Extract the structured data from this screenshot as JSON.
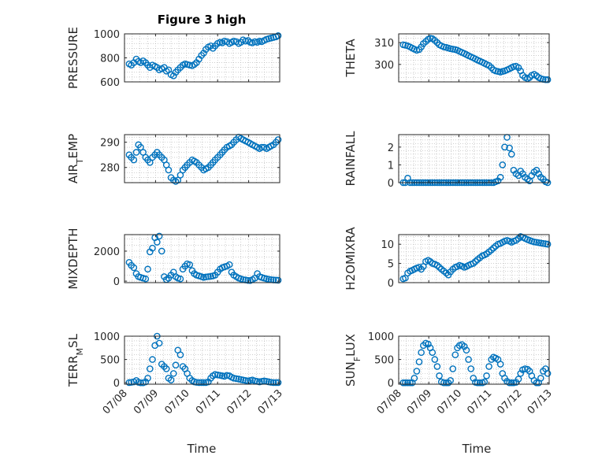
{
  "figure": {
    "title": "Figure 3 high",
    "xlabel": "Time"
  },
  "colors": {
    "marker": "#0072BD",
    "axis": "#262626",
    "grid": "#b0b0b0"
  },
  "chart_data": [
    {
      "type": "scatter",
      "id": "pressure",
      "ylabel": "PRESSURE",
      "ylim": [
        600,
        1000
      ],
      "yticks": [
        600,
        800,
        1000
      ],
      "xlim": [
        0,
        5
      ],
      "xticks": [
        0,
        1,
        2,
        3,
        4,
        5
      ],
      "xticklabels": [
        "07/08",
        "07/09",
        "07/10",
        "07/11",
        "07/12",
        "07/13"
      ],
      "title": "Figure 3 high",
      "grid": true,
      "x": [
        0.15,
        0.22,
        0.3,
        0.38,
        0.45,
        0.52,
        0.6,
        0.68,
        0.75,
        0.82,
        0.9,
        0.98,
        1.05,
        1.12,
        1.2,
        1.28,
        1.35,
        1.42,
        1.5,
        1.58,
        1.65,
        1.72,
        1.8,
        1.88,
        1.95,
        2.02,
        2.1,
        2.18,
        2.25,
        2.32,
        2.4,
        2.48,
        2.55,
        2.62,
        2.7,
        2.78,
        2.85,
        2.92,
        3.0,
        3.08,
        3.15,
        3.22,
        3.3,
        3.38,
        3.45,
        3.52,
        3.6,
        3.68,
        3.75,
        3.82,
        3.9,
        3.98,
        4.05,
        4.12,
        4.2,
        4.28,
        4.35,
        4.42,
        4.5,
        4.58,
        4.65,
        4.72,
        4.8,
        4.88,
        4.95
      ],
      "y": [
        750,
        740,
        760,
        790,
        770,
        760,
        775,
        760,
        740,
        720,
        740,
        730,
        720,
        700,
        710,
        720,
        690,
        700,
        660,
        650,
        680,
        700,
        720,
        740,
        750,
        745,
        740,
        735,
        745,
        760,
        790,
        820,
        840,
        870,
        890,
        900,
        880,
        900,
        920,
        930,
        925,
        940,
        935,
        920,
        930,
        940,
        935,
        920,
        930,
        950,
        940,
        945,
        930,
        925,
        935,
        930,
        940,
        935,
        945,
        955,
        960,
        965,
        970,
        975,
        985
      ]
    },
    {
      "type": "scatter",
      "id": "theta",
      "ylabel": "THETA",
      "ylim": [
        292,
        314
      ],
      "yticks": [
        300,
        310
      ],
      "xlim": [
        0,
        5
      ],
      "xticks": [
        0,
        1,
        2,
        3,
        4,
        5
      ],
      "xticklabels": [
        "07/08",
        "07/09",
        "07/10",
        "07/11",
        "07/12",
        "07/13"
      ],
      "title": "",
      "grid": true,
      "x": [
        0.15,
        0.22,
        0.3,
        0.38,
        0.45,
        0.52,
        0.6,
        0.68,
        0.75,
        0.82,
        0.9,
        0.98,
        1.05,
        1.12,
        1.2,
        1.28,
        1.35,
        1.42,
        1.5,
        1.58,
        1.65,
        1.72,
        1.8,
        1.88,
        1.95,
        2.02,
        2.1,
        2.18,
        2.25,
        2.32,
        2.4,
        2.48,
        2.55,
        2.62,
        2.7,
        2.78,
        2.85,
        2.92,
        3.0,
        3.08,
        3.15,
        3.22,
        3.3,
        3.38,
        3.45,
        3.52,
        3.6,
        3.68,
        3.75,
        3.82,
        3.9,
        3.98,
        4.05,
        4.12,
        4.2,
        4.28,
        4.35,
        4.42,
        4.5,
        4.58,
        4.65,
        4.72,
        4.8,
        4.88,
        4.95
      ],
      "y": [
        309,
        308.8,
        308.5,
        308,
        307.5,
        307,
        306.5,
        306.8,
        308,
        309.5,
        310.5,
        311.5,
        312,
        311.8,
        311,
        310,
        309,
        308.5,
        308,
        307.8,
        307.5,
        307.2,
        307,
        306.8,
        306.5,
        306,
        305.5,
        305,
        304.5,
        304,
        303.5,
        303,
        302.5,
        302,
        301.5,
        301,
        300.5,
        300,
        299.5,
        298.5,
        297.5,
        297,
        296.8,
        296.5,
        296.8,
        297,
        297.5,
        298,
        298.5,
        299,
        299.2,
        298.5,
        297,
        295,
        294,
        293.5,
        294,
        295,
        295.5,
        294.8,
        294,
        293.5,
        293.2,
        293,
        293
      ]
    },
    {
      "type": "scatter",
      "id": "air_temp",
      "ylabel": "AIR_TEMP",
      "ylim": [
        274,
        293
      ],
      "yticks": [
        280,
        290
      ],
      "xlim": [
        0,
        5
      ],
      "xticks": [
        0,
        1,
        2,
        3,
        4,
        5
      ],
      "xticklabels": [
        "07/08",
        "07/09",
        "07/10",
        "07/11",
        "07/12",
        "07/13"
      ],
      "title": "",
      "grid": true,
      "x": [
        0.15,
        0.22,
        0.3,
        0.38,
        0.45,
        0.52,
        0.6,
        0.68,
        0.75,
        0.82,
        0.9,
        0.98,
        1.05,
        1.12,
        1.2,
        1.28,
        1.35,
        1.42,
        1.5,
        1.58,
        1.65,
        1.72,
        1.8,
        1.88,
        1.95,
        2.02,
        2.1,
        2.18,
        2.25,
        2.32,
        2.4,
        2.48,
        2.55,
        2.62,
        2.7,
        2.78,
        2.85,
        2.92,
        3.0,
        3.08,
        3.15,
        3.22,
        3.3,
        3.38,
        3.45,
        3.52,
        3.6,
        3.68,
        3.75,
        3.82,
        3.9,
        3.98,
        4.05,
        4.12,
        4.2,
        4.28,
        4.35,
        4.42,
        4.5,
        4.58,
        4.65,
        4.72,
        4.8,
        4.88,
        4.95
      ],
      "y": [
        285,
        284,
        283,
        286,
        289,
        288,
        286,
        284,
        283,
        282,
        284,
        285,
        286,
        285,
        284,
        283,
        281,
        279,
        276,
        275,
        274.5,
        275,
        277,
        279,
        280,
        281,
        282,
        283,
        282.5,
        282,
        281,
        280,
        279,
        279.5,
        280,
        281,
        282,
        283,
        284,
        285,
        286,
        287,
        288,
        288.5,
        289,
        290,
        291,
        292,
        291.5,
        291,
        290.5,
        290,
        289.5,
        289,
        288.5,
        288,
        287.5,
        288,
        288,
        287.5,
        288,
        288.5,
        289,
        290,
        291
      ]
    },
    {
      "type": "scatter",
      "id": "rainfall",
      "ylabel": "RAINFALL",
      "ylim": [
        0,
        2.7
      ],
      "yticks": [
        0,
        1,
        2
      ],
      "xlim": [
        0,
        5
      ],
      "xticks": [
        0,
        1,
        2,
        3,
        4,
        5
      ],
      "xticklabels": [
        "07/08",
        "07/09",
        "07/10",
        "07/11",
        "07/12",
        "07/13"
      ],
      "title": "",
      "grid": true,
      "x": [
        0.15,
        0.22,
        0.3,
        0.38,
        0.45,
        0.52,
        0.6,
        0.68,
        0.75,
        0.82,
        0.9,
        0.98,
        1.05,
        1.12,
        1.2,
        1.28,
        1.35,
        1.42,
        1.5,
        1.58,
        1.65,
        1.72,
        1.8,
        1.88,
        1.95,
        2.02,
        2.1,
        2.18,
        2.25,
        2.32,
        2.4,
        2.48,
        2.55,
        2.62,
        2.7,
        2.78,
        2.85,
        2.92,
        3.0,
        3.08,
        3.15,
        3.22,
        3.3,
        3.38,
        3.45,
        3.52,
        3.6,
        3.68,
        3.75,
        3.82,
        3.9,
        3.98,
        4.05,
        4.12,
        4.2,
        4.28,
        4.35,
        4.42,
        4.5,
        4.58,
        4.65,
        4.72,
        4.8,
        4.88,
        4.95
      ],
      "y": [
        0,
        0,
        0.25,
        0,
        0,
        0,
        0,
        0,
        0,
        0,
        0,
        0,
        0,
        0,
        0,
        0,
        0,
        0,
        0,
        0,
        0,
        0,
        0,
        0,
        0,
        0,
        0,
        0,
        0,
        0,
        0,
        0,
        0,
        0,
        0,
        0,
        0,
        0,
        0,
        0,
        0,
        0.05,
        0.1,
        0.3,
        1.0,
        2.0,
        2.55,
        1.95,
        1.6,
        0.7,
        0.5,
        0.4,
        0.65,
        0.5,
        0.3,
        0.2,
        0.1,
        0.4,
        0.6,
        0.7,
        0.5,
        0.3,
        0.2,
        0.05,
        0
      ]
    },
    {
      "type": "scatter",
      "id": "mixdepth",
      "ylabel": "MIXDEPTH",
      "ylim": [
        -100,
        3100
      ],
      "yticks": [
        0,
        2000
      ],
      "xlim": [
        0,
        5
      ],
      "xticks": [
        0,
        1,
        2,
        3,
        4,
        5
      ],
      "xticklabels": [
        "07/08",
        "07/09",
        "07/10",
        "07/11",
        "07/12",
        "07/13"
      ],
      "title": "",
      "grid": true,
      "x": [
        0.15,
        0.22,
        0.3,
        0.38,
        0.45,
        0.52,
        0.6,
        0.68,
        0.75,
        0.82,
        0.9,
        0.98,
        1.05,
        1.12,
        1.2,
        1.28,
        1.35,
        1.42,
        1.5,
        1.58,
        1.65,
        1.72,
        1.8,
        1.88,
        1.95,
        2.02,
        2.1,
        2.18,
        2.25,
        2.32,
        2.4,
        2.48,
        2.55,
        2.62,
        2.7,
        2.78,
        2.85,
        2.92,
        3.0,
        3.08,
        3.15,
        3.22,
        3.3,
        3.38,
        3.45,
        3.52,
        3.6,
        3.68,
        3.75,
        3.82,
        3.9,
        3.98,
        4.05,
        4.12,
        4.2,
        4.28,
        4.35,
        4.42,
        4.5,
        4.58,
        4.65,
        4.72,
        4.8,
        4.88,
        4.95
      ],
      "y": [
        1250,
        1050,
        900,
        500,
        300,
        250,
        200,
        150,
        800,
        1950,
        2200,
        2900,
        2600,
        3000,
        2000,
        300,
        100,
        200,
        400,
        600,
        300,
        200,
        150,
        800,
        1000,
        1150,
        1100,
        700,
        500,
        400,
        350,
        300,
        250,
        280,
        300,
        320,
        350,
        400,
        600,
        800,
        900,
        950,
        1000,
        1100,
        600,
        400,
        300,
        200,
        150,
        100,
        80,
        50,
        40,
        100,
        200,
        500,
        300,
        250,
        200,
        150,
        120,
        100,
        80,
        70,
        60
      ]
    },
    {
      "type": "scatter",
      "id": "h2omixra",
      "ylabel": "H2OMIXRA",
      "ylim": [
        0,
        12.5
      ],
      "yticks": [
        0,
        5,
        10
      ],
      "xlim": [
        0,
        5
      ],
      "xticks": [
        0,
        1,
        2,
        3,
        4,
        5
      ],
      "xticklabels": [
        "07/08",
        "07/09",
        "07/10",
        "07/11",
        "07/12",
        "07/13"
      ],
      "title": "",
      "grid": true,
      "x": [
        0.15,
        0.22,
        0.3,
        0.38,
        0.45,
        0.52,
        0.6,
        0.68,
        0.75,
        0.82,
        0.9,
        0.98,
        1.05,
        1.12,
        1.2,
        1.28,
        1.35,
        1.42,
        1.5,
        1.58,
        1.65,
        1.72,
        1.8,
        1.88,
        1.95,
        2.02,
        2.1,
        2.18,
        2.25,
        2.32,
        2.4,
        2.48,
        2.55,
        2.62,
        2.7,
        2.78,
        2.85,
        2.92,
        3.0,
        3.08,
        3.15,
        3.22,
        3.3,
        3.38,
        3.45,
        3.52,
        3.6,
        3.68,
        3.75,
        3.82,
        3.9,
        3.98,
        4.05,
        4.12,
        4.2,
        4.28,
        4.35,
        4.42,
        4.5,
        4.58,
        4.65,
        4.72,
        4.8,
        4.88,
        4.95
      ],
      "y": [
        1.0,
        1.2,
        2.5,
        3.0,
        3.2,
        3.5,
        3.8,
        4.0,
        3.5,
        4.2,
        5.5,
        5.8,
        5.5,
        5.0,
        4.8,
        4.5,
        4.0,
        3.5,
        3.0,
        2.5,
        2.0,
        2.8,
        3.5,
        4.0,
        4.2,
        4.5,
        4.3,
        4.0,
        4.2,
        4.5,
        4.8,
        5.0,
        5.5,
        6.0,
        6.5,
        7.0,
        7.2,
        7.5,
        8.0,
        8.5,
        9.0,
        9.5,
        10.0,
        10.2,
        10.5,
        10.8,
        11.0,
        10.8,
        10.5,
        10.8,
        11.0,
        11.5,
        12.0,
        11.8,
        11.5,
        11.2,
        11.0,
        10.8,
        10.6,
        10.5,
        10.4,
        10.3,
        10.2,
        10.1,
        10.0
      ]
    },
    {
      "type": "scatter",
      "id": "terr_msl",
      "ylabel": "TERR_MSL",
      "ylim": [
        -30,
        1000
      ],
      "yticks": [
        0,
        500,
        1000
      ],
      "xlim": [
        0,
        5
      ],
      "xticks": [
        0,
        1,
        2,
        3,
        4,
        5
      ],
      "xticklabels": [
        "07/08",
        "07/09",
        "07/10",
        "07/11",
        "07/12",
        "07/13"
      ],
      "title": "",
      "grid": true,
      "x": [
        0.15,
        0.22,
        0.3,
        0.38,
        0.45,
        0.52,
        0.6,
        0.68,
        0.75,
        0.82,
        0.9,
        0.98,
        1.05,
        1.12,
        1.2,
        1.28,
        1.35,
        1.42,
        1.5,
        1.58,
        1.65,
        1.72,
        1.8,
        1.88,
        1.95,
        2.02,
        2.1,
        2.18,
        2.25,
        2.32,
        2.4,
        2.48,
        2.55,
        2.62,
        2.7,
        2.78,
        2.85,
        2.92,
        3.0,
        3.08,
        3.15,
        3.22,
        3.3,
        3.38,
        3.45,
        3.52,
        3.6,
        3.68,
        3.75,
        3.82,
        3.9,
        3.98,
        4.05,
        4.12,
        4.2,
        4.28,
        4.35,
        4.42,
        4.5,
        4.58,
        4.65,
        4.72,
        4.8,
        4.88,
        4.95
      ],
      "y": [
        5,
        10,
        20,
        50,
        10,
        0,
        0,
        20,
        100,
        300,
        500,
        800,
        1000,
        850,
        400,
        350,
        300,
        100,
        60,
        200,
        380,
        700,
        600,
        350,
        300,
        200,
        100,
        50,
        20,
        10,
        5,
        5,
        5,
        5,
        20,
        100,
        150,
        180,
        170,
        160,
        150,
        140,
        160,
        150,
        120,
        100,
        90,
        80,
        70,
        60,
        50,
        40,
        50,
        60,
        40,
        30,
        20,
        30,
        40,
        30,
        20,
        10,
        5,
        5,
        5
      ]
    },
    {
      "type": "scatter",
      "id": "sun_flux",
      "ylabel": "SUN_FLUX",
      "ylim": [
        -30,
        1000
      ],
      "yticks": [
        0,
        500,
        1000
      ],
      "xlim": [
        0,
        5
      ],
      "xticks": [
        0,
        1,
        2,
        3,
        4,
        5
      ],
      "xticklabels": [
        "07/08",
        "07/09",
        "07/10",
        "07/11",
        "07/12",
        "07/13"
      ],
      "title": "",
      "grid": true,
      "x": [
        0.15,
        0.22,
        0.3,
        0.38,
        0.45,
        0.52,
        0.6,
        0.68,
        0.75,
        0.82,
        0.9,
        0.98,
        1.05,
        1.12,
        1.2,
        1.28,
        1.35,
        1.42,
        1.5,
        1.58,
        1.65,
        1.72,
        1.8,
        1.88,
        1.95,
        2.02,
        2.1,
        2.18,
        2.25,
        2.32,
        2.4,
        2.48,
        2.55,
        2.62,
        2.7,
        2.78,
        2.85,
        2.92,
        3.0,
        3.08,
        3.15,
        3.22,
        3.3,
        3.38,
        3.45,
        3.52,
        3.6,
        3.68,
        3.75,
        3.82,
        3.9,
        3.98,
        4.05,
        4.12,
        4.2,
        4.28,
        4.35,
        4.42,
        4.5,
        4.58,
        4.65,
        4.72,
        4.8,
        4.88,
        4.95
      ],
      "y": [
        0,
        0,
        0,
        0,
        0,
        100,
        250,
        450,
        650,
        800,
        850,
        830,
        750,
        650,
        500,
        350,
        150,
        20,
        0,
        0,
        0,
        50,
        300,
        600,
        750,
        800,
        820,
        780,
        700,
        500,
        300,
        100,
        10,
        0,
        0,
        0,
        20,
        150,
        350,
        500,
        550,
        530,
        500,
        400,
        200,
        100,
        30,
        0,
        0,
        0,
        10,
        80,
        200,
        280,
        300,
        290,
        250,
        150,
        50,
        0,
        0,
        100,
        250,
        300,
        200
      ]
    }
  ]
}
